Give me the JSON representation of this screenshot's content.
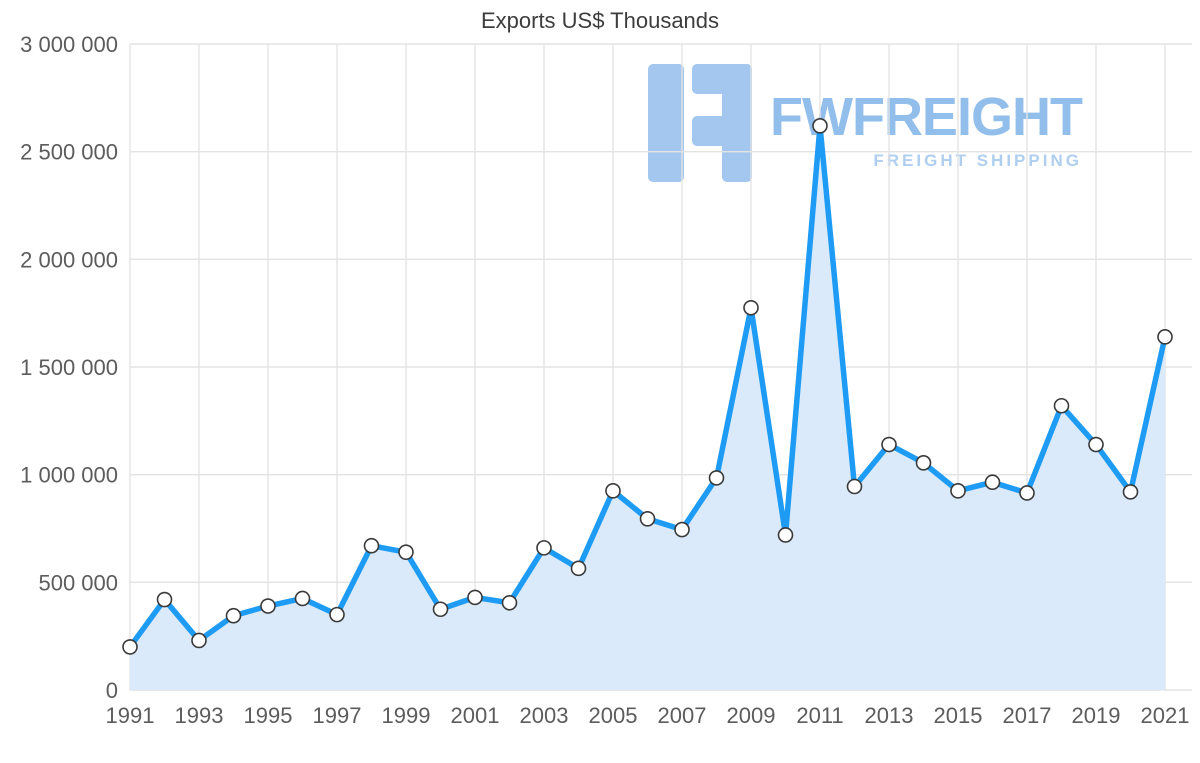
{
  "chart_data": {
    "type": "area",
    "title": "Exports US$ Thousands",
    "xlabel": "",
    "ylabel": "",
    "x": [
      1991,
      1992,
      1993,
      1994,
      1995,
      1996,
      1997,
      1998,
      1999,
      2000,
      2001,
      2002,
      2003,
      2004,
      2005,
      2006,
      2007,
      2008,
      2009,
      2010,
      2011,
      2012,
      2013,
      2014,
      2015,
      2016,
      2017,
      2018,
      2019,
      2020,
      2021
    ],
    "values": [
      200000,
      420000,
      230000,
      345000,
      390000,
      425000,
      350000,
      670000,
      640000,
      375000,
      430000,
      405000,
      660000,
      565000,
      925000,
      795000,
      745000,
      985000,
      1775000,
      720000,
      2620000,
      945000,
      1140000,
      1055000,
      925000,
      965000,
      915000,
      1320000,
      1140000,
      920000,
      1640000
    ],
    "ylim": [
      0,
      3000000
    ],
    "yticks": [
      {
        "value": 0,
        "label": "0"
      },
      {
        "value": 500000,
        "label": "500 000"
      },
      {
        "value": 1000000,
        "label": "1 000 000"
      },
      {
        "value": 1500000,
        "label": "1 500 000"
      },
      {
        "value": 2000000,
        "label": "2 000 000"
      },
      {
        "value": 2500000,
        "label": "2 500 000"
      },
      {
        "value": 3000000,
        "label": "3 000 000"
      }
    ],
    "xtick_step": 2,
    "grid": true,
    "legend": "none",
    "colors": {
      "line": "#1E9CF5",
      "area": "#DAEAFB",
      "marker_fill": "#ffffff",
      "marker_stroke": "#3a3a3a",
      "grid": "#E3E3E3",
      "tick_text": "#5c5c5c"
    }
  },
  "watermark": {
    "brand": "FWFREIGHT",
    "tagline": "FREIGHT SHIPPING",
    "brand_color": "#92BEEB",
    "tagline_color": "#AFCFF1",
    "logo_color": "#A3C7EF"
  }
}
